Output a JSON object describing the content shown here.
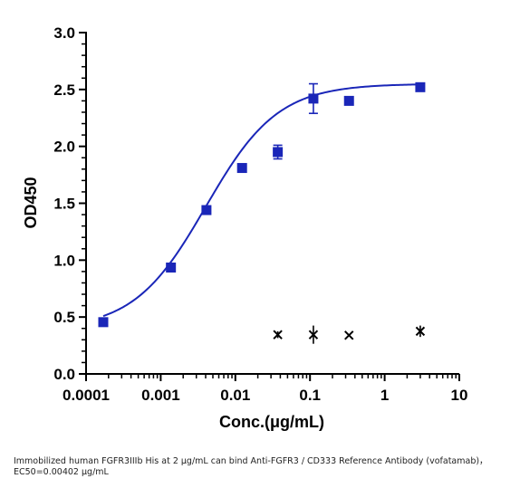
{
  "chart_data": {
    "type": "scatter",
    "xlabel": "Conc.(μg/mL)",
    "ylabel": "OD450",
    "xscale": "log",
    "xlim": [
      0.0001,
      10
    ],
    "ylim": [
      0.0,
      3.0
    ],
    "x_tick_labels": [
      "0.0001",
      "0.001",
      "0.01",
      "0.1",
      "1",
      "10"
    ],
    "x_tick_values": [
      0.0001,
      0.001,
      0.01,
      0.1,
      1,
      10
    ],
    "y_tick_labels": [
      "0.0",
      "0.5",
      "1.0",
      "1.5",
      "2.0",
      "2.5",
      "3.0"
    ],
    "y_tick_values": [
      0.0,
      0.5,
      1.0,
      1.5,
      2.0,
      2.5,
      3.0
    ],
    "grid": false,
    "colors": {
      "series": "#1a26b8",
      "marker_x": "#000000"
    },
    "series": [
      {
        "marker": "square",
        "points": [
          {
            "x": 0.00017,
            "y": 0.455,
            "err": 0.0
          },
          {
            "x": 0.00137,
            "y": 0.935,
            "err": 0.0
          },
          {
            "x": 0.0041,
            "y": 1.44,
            "err": 0.0
          },
          {
            "x": 0.0123,
            "y": 1.81,
            "err": 0.0
          },
          {
            "x": 0.037,
            "y": 1.95,
            "err": 0.06
          },
          {
            "x": 0.111,
            "y": 2.42,
            "err": 0.13
          },
          {
            "x": 0.333,
            "y": 2.4,
            "err": 0.03
          },
          {
            "x": 3.0,
            "y": 2.52,
            "err": 0.0
          }
        ]
      },
      {
        "marker": "x",
        "points": [
          {
            "x": 0.037,
            "y": 0.345,
            "err": 0.03
          },
          {
            "x": 0.111,
            "y": 0.345,
            "err": 0.08
          },
          {
            "x": 0.333,
            "y": 0.34,
            "err": 0.0
          },
          {
            "x": 3.0,
            "y": 0.375,
            "err": 0.05
          }
        ]
      }
    ],
    "fit_curve": {
      "bottom": 0.39,
      "top": 2.55,
      "ec50": 0.00402,
      "hill": 0.9
    },
    "caption": "Immobilized human FGFR3IIIb His at 2  μg/mL can bind  Anti-FGFR3 / CD333 Reference Antibody (vofatamab)，EC50=0.00402 μg/mL"
  }
}
